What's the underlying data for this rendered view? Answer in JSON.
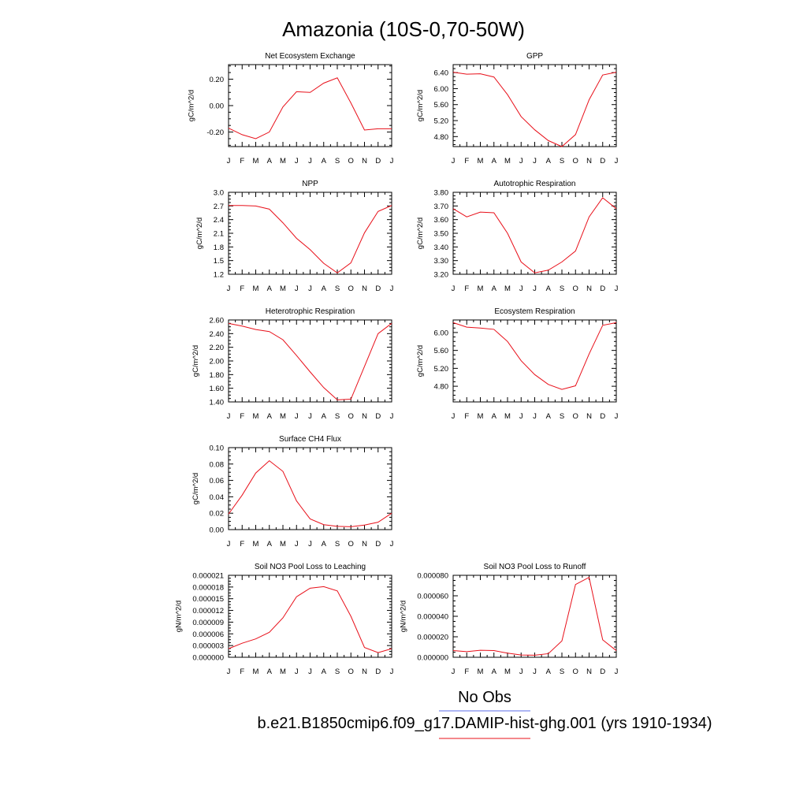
{
  "title": "Amazonia (10S-0,70-50W)",
  "colors": {
    "series": "#e8101a",
    "obs": "#5b6ee8",
    "axis": "#000000"
  },
  "legend": [
    {
      "label": "No Obs",
      "color": "#5b6ee8"
    },
    {
      "label": "b.e21.B1850cmip6.f09_g17.DAMIP-hist-ghg.001 (yrs 1910-1934)",
      "color": "#e8101a"
    }
  ],
  "chart_data": [
    {
      "type": "line",
      "title": "Net Ecosystem Exchange",
      "ylabel": "gC/m^2/d",
      "x": [
        "J",
        "F",
        "M",
        "A",
        "M",
        "J",
        "J",
        "A",
        "S",
        "O",
        "N",
        "D",
        "J"
      ],
      "ylim": [
        -0.31,
        0.31
      ],
      "yticks": [
        -0.2,
        0.0,
        0.2
      ],
      "ytick_labels": [
        "-0.20",
        "0.00",
        "0.20"
      ],
      "series": [
        {
          "values": [
            -0.17,
            -0.22,
            -0.25,
            -0.2,
            -0.01,
            0.105,
            0.1,
            0.17,
            0.21,
            0.02,
            -0.185,
            -0.175,
            -0.175
          ]
        }
      ]
    },
    {
      "type": "line",
      "title": "GPP",
      "ylabel": "gC/m^2/d",
      "x": [
        "J",
        "F",
        "M",
        "A",
        "M",
        "J",
        "J",
        "A",
        "S",
        "O",
        "N",
        "D",
        "J"
      ],
      "ylim": [
        4.55,
        6.6
      ],
      "yticks": [
        4.8,
        5.2,
        5.6,
        6.0,
        6.4
      ],
      "ytick_labels": [
        "4.80",
        "5.20",
        "5.60",
        "6.00",
        "6.40"
      ],
      "series": [
        {
          "values": [
            6.41,
            6.36,
            6.37,
            6.29,
            5.85,
            5.3,
            4.97,
            4.7,
            4.55,
            4.85,
            5.72,
            6.34,
            6.41
          ]
        }
      ]
    },
    {
      "type": "line",
      "title": "NPP",
      "ylabel": "gC/m^2/d",
      "x": [
        "J",
        "F",
        "M",
        "A",
        "M",
        "J",
        "J",
        "A",
        "S",
        "O",
        "N",
        "D",
        "J"
      ],
      "ylim": [
        1.2,
        3.0
      ],
      "yticks": [
        1.2,
        1.5,
        1.8,
        2.1,
        2.4,
        2.7,
        3.0
      ],
      "ytick_labels": [
        "1.2",
        "1.5",
        "1.8",
        "2.1",
        "2.4",
        "2.7",
        "3.0"
      ],
      "series": [
        {
          "values": [
            2.71,
            2.71,
            2.7,
            2.63,
            2.33,
            1.99,
            1.74,
            1.44,
            1.23,
            1.45,
            2.11,
            2.58,
            2.71
          ]
        }
      ]
    },
    {
      "type": "line",
      "title": "Autotrophic Respiration",
      "ylabel": "gC/m^2/d",
      "x": [
        "J",
        "F",
        "M",
        "A",
        "M",
        "J",
        "J",
        "A",
        "S",
        "O",
        "N",
        "D",
        "J"
      ],
      "ylim": [
        3.2,
        3.8
      ],
      "yticks": [
        3.2,
        3.3,
        3.4,
        3.5,
        3.6,
        3.7,
        3.8
      ],
      "ytick_labels": [
        "3.20",
        "3.30",
        "3.40",
        "3.50",
        "3.60",
        "3.70",
        "3.80"
      ],
      "series": [
        {
          "values": [
            3.68,
            3.62,
            3.655,
            3.65,
            3.5,
            3.29,
            3.21,
            3.23,
            3.29,
            3.37,
            3.62,
            3.76,
            3.68
          ]
        }
      ]
    },
    {
      "type": "line",
      "title": "Heterotrophic Respiration",
      "ylabel": "gC/m^2/d",
      "x": [
        "J",
        "F",
        "M",
        "A",
        "M",
        "J",
        "J",
        "A",
        "S",
        "O",
        "N",
        "D",
        "J"
      ],
      "ylim": [
        1.4,
        2.6
      ],
      "yticks": [
        1.4,
        1.6,
        1.8,
        2.0,
        2.2,
        2.4,
        2.6
      ],
      "ytick_labels": [
        "1.40",
        "1.60",
        "1.80",
        "2.00",
        "2.20",
        "2.40",
        "2.60"
      ],
      "series": [
        {
          "values": [
            2.55,
            2.51,
            2.46,
            2.43,
            2.31,
            2.08,
            1.84,
            1.61,
            1.43,
            1.44,
            1.92,
            2.4,
            2.55
          ]
        }
      ]
    },
    {
      "type": "line",
      "title": "Ecosystem Respiration",
      "ylabel": "gC/m^2/d",
      "x": [
        "J",
        "F",
        "M",
        "A",
        "M",
        "J",
        "J",
        "A",
        "S",
        "O",
        "N",
        "D",
        "J"
      ],
      "ylim": [
        4.45,
        6.28
      ],
      "yticks": [
        4.8,
        5.2,
        5.6,
        6.0
      ],
      "ytick_labels": [
        "4.80",
        "5.20",
        "5.60",
        "6.00"
      ],
      "series": [
        {
          "values": [
            6.22,
            6.12,
            6.1,
            6.07,
            5.8,
            5.37,
            5.06,
            4.84,
            4.73,
            4.81,
            5.52,
            6.16,
            6.22
          ]
        }
      ]
    },
    {
      "type": "line",
      "title": "Surface CH4 Flux",
      "ylabel": "gC/m^2/d",
      "x": [
        "J",
        "F",
        "M",
        "A",
        "M",
        "J",
        "J",
        "A",
        "S",
        "O",
        "N",
        "D",
        "J"
      ],
      "ylim": [
        0.0,
        0.1
      ],
      "yticks": [
        0.0,
        0.02,
        0.04,
        0.06,
        0.08,
        0.1
      ],
      "ytick_labels": [
        "0.00",
        "0.02",
        "0.04",
        "0.06",
        "0.08",
        "0.10"
      ],
      "series": [
        {
          "values": [
            0.019,
            0.042,
            0.069,
            0.084,
            0.071,
            0.035,
            0.013,
            0.006,
            0.004,
            0.0035,
            0.0055,
            0.009,
            0.02
          ]
        }
      ]
    },
    {
      "type": "line",
      "title": "Soil NO3 Pool Loss to Leaching",
      "ylabel": "gN/m^2/d",
      "x": [
        "J",
        "F",
        "M",
        "A",
        "M",
        "J",
        "J",
        "A",
        "S",
        "O",
        "N",
        "D",
        "J"
      ],
      "ylim": [
        0.0,
        2.1e-05
      ],
      "yticks": [
        0.0,
        3e-06,
        6e-06,
        9e-06,
        1.2e-05,
        1.5e-05,
        1.8e-05,
        2.1e-05
      ],
      "ytick_labels": [
        "0.000000",
        "0.000003",
        "0.000006",
        "0.000009",
        "0.000012",
        "0.000015",
        "0.000018",
        "0.000021"
      ],
      "series": [
        {
          "values": [
            2.2e-06,
            3.6e-06,
            4.7e-06,
            6.4e-06,
            1.01e-05,
            1.55e-05,
            1.77e-05,
            1.81e-05,
            1.7e-05,
            1.05e-05,
            2.5e-06,
            1.2e-06,
            2.2e-06
          ]
        }
      ]
    },
    {
      "type": "line",
      "title": "Soil NO3 Pool Loss to Runoff",
      "ylabel": "gN/m^2/d",
      "x": [
        "J",
        "F",
        "M",
        "A",
        "M",
        "J",
        "J",
        "A",
        "S",
        "O",
        "N",
        "D",
        "J"
      ],
      "ylim": [
        0.0,
        8e-05
      ],
      "yticks": [
        0.0,
        2e-05,
        4e-05,
        6e-05,
        8e-05
      ],
      "ytick_labels": [
        "0.000000",
        "0.000020",
        "0.000040",
        "0.000060",
        "0.000080"
      ],
      "series": [
        {
          "values": [
            6.5e-06,
            5.5e-06,
            6.8e-06,
            6.5e-06,
            4e-06,
            2.2e-06,
            2e-06,
            3.5e-06,
            1.6e-05,
            7.1e-05,
            7.8e-05,
            1.7e-05,
            6.5e-06
          ]
        }
      ]
    }
  ]
}
